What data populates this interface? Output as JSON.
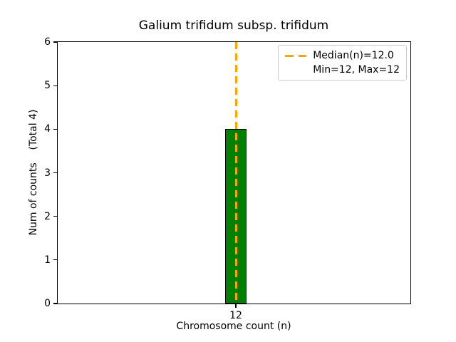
{
  "chart_data": {
    "type": "bar",
    "title": "Galium trifidum subsp. trifidum",
    "xlabel": "Chromosome count (n)",
    "ylabel": "Num of counts    (Total 4)",
    "categories": [
      "12"
    ],
    "values": [
      4
    ],
    "total_annotation": "(Total 4)",
    "ylim": [
      0,
      6
    ],
    "yticks": [
      0,
      1,
      2,
      3,
      4,
      5,
      6
    ],
    "grid": false,
    "bar_color": "#008000",
    "bar_edge_color": "#000000",
    "median_line": {
      "value": 12.0,
      "color": "#FFA500",
      "style": "dashed",
      "orientation": "vertical"
    },
    "legend": {
      "position": "upper right",
      "entries": [
        {
          "marker": "orange-dashed-line",
          "label": "Median(n)=12.0"
        },
        {
          "marker": "none",
          "label": "Min=12, Max=12"
        }
      ]
    }
  }
}
